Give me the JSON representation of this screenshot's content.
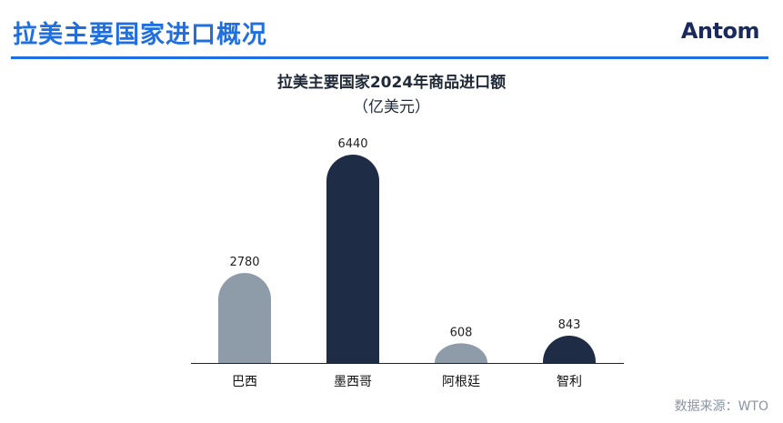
{
  "header": {
    "title": "拉美主要国家进口概况",
    "logo_text": "Antom"
  },
  "source_note": "数据来源：WTO",
  "colors": {
    "accent": "#1f6fe0",
    "bar_light": "#8e9ba8",
    "bar_dark": "#1f2c45"
  },
  "chart_data": {
    "type": "bar",
    "title": "拉美主要国家2024年商品进口额",
    "subtitle": "（亿美元）",
    "categories": [
      "巴西",
      "墨西哥",
      "阿根廷",
      "智利"
    ],
    "values": [
      2780,
      6440,
      608,
      843
    ],
    "value_labels": [
      "2780",
      "6440",
      "608",
      "843"
    ],
    "bar_colors": [
      "#8e9ba8",
      "#1f2c45",
      "#8e9ba8",
      "#1f2c45"
    ],
    "ylim": [
      0,
      6440
    ],
    "grid": false,
    "legend": "none"
  }
}
